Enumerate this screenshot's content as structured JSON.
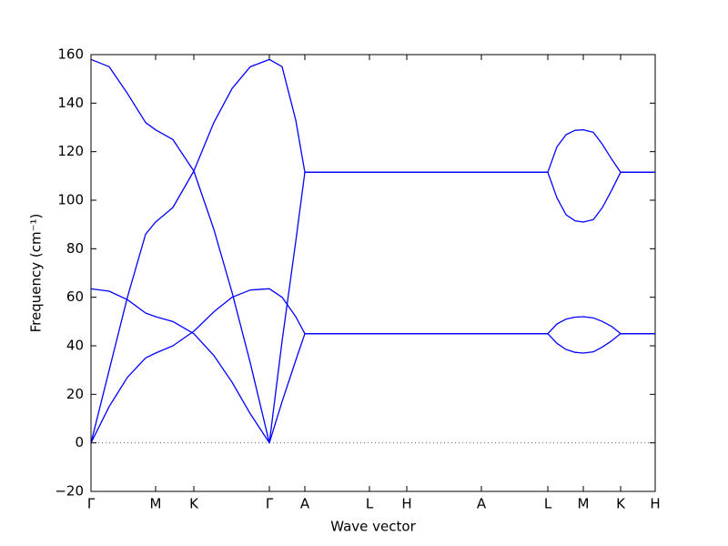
{
  "chart_data": {
    "type": "line",
    "xlabel": "Wave vector",
    "ylabel": "Frequency (cm⁻¹)",
    "x": [
      0,
      0.2,
      0.4,
      0.6,
      0.71,
      0.9,
      1.13,
      1.35,
      1.55,
      1.75,
      1.96,
      2.1,
      2.25,
      2.35,
      3.06,
      3.47,
      4.29,
      5.02,
      5.12,
      5.22,
      5.32,
      5.41,
      5.52,
      5.62,
      5.72,
      5.82,
      6.2
    ],
    "series": [
      {
        "color": "#0000ff",
        "values": [
          0,
          15,
          27,
          35,
          37,
          40,
          46,
          54,
          60,
          63,
          63.5,
          60,
          52,
          45,
          45,
          45,
          45,
          45,
          41,
          38.5,
          37.3,
          37,
          37.5,
          39.5,
          42,
          45,
          45
        ]
      },
      {
        "color": "#0000ff",
        "values": [
          63.5,
          62.5,
          59,
          53.5,
          52,
          50,
          45,
          36,
          25,
          12,
          0,
          17,
          34,
          45,
          45,
          45,
          45,
          45,
          49,
          51,
          51.8,
          52,
          51.5,
          50,
          48,
          45,
          45
        ]
      },
      {
        "color": "#0000ff",
        "values": [
          0,
          30,
          60,
          86,
          91,
          97,
          112,
          132,
          146,
          155,
          158,
          155,
          133,
          111.5,
          111.5,
          111.5,
          111.5,
          111.5,
          101,
          94,
          91.5,
          91,
          92,
          97,
          104,
          111.5,
          111.5
        ]
      },
      {
        "color": "#0000ff",
        "values": [
          158,
          155,
          144,
          132,
          129,
          125,
          112,
          88,
          62,
          33,
          0,
          42,
          83,
          111.5,
          111.5,
          111.5,
          111.5,
          111.5,
          122,
          127,
          128.8,
          129,
          128,
          123,
          117,
          111.5,
          111.5
        ]
      }
    ],
    "xlim": [
      0,
      6.2
    ],
    "xticks": [
      {
        "value": 0,
        "label": "Γ"
      },
      {
        "value": 0.71,
        "label": "M"
      },
      {
        "value": 1.13,
        "label": "K"
      },
      {
        "value": 1.96,
        "label": "Γ"
      },
      {
        "value": 2.35,
        "label": "A"
      },
      {
        "value": 3.06,
        "label": "L"
      },
      {
        "value": 3.47,
        "label": "H"
      },
      {
        "value": 4.29,
        "label": "A"
      },
      {
        "value": 5.02,
        "label": "L"
      },
      {
        "value": 5.41,
        "label": "M"
      },
      {
        "value": 5.82,
        "label": "K"
      },
      {
        "value": 6.2,
        "label": "H"
      }
    ],
    "ylim": [
      -20,
      160
    ],
    "yticks": [
      {
        "value": -20,
        "label": "−20"
      },
      0,
      20,
      40,
      60,
      80,
      100,
      120,
      140,
      160
    ],
    "zero_line": true
  }
}
